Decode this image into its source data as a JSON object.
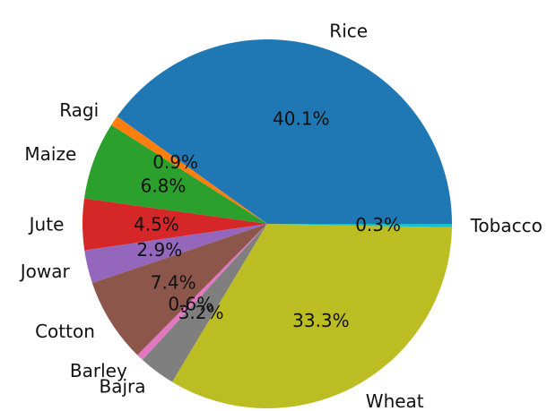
{
  "chart_data": {
    "type": "pie",
    "title": "",
    "start_angle_deg": 0,
    "direction": "counterclockwise",
    "legend": "none",
    "slices": [
      {
        "label": "Rice",
        "value": 40.1,
        "pct_label": "40.1%",
        "color": "#1f77b4"
      },
      {
        "label": "Ragi",
        "value": 0.9,
        "pct_label": "0.9%",
        "color": "#ff7f0e"
      },
      {
        "label": "Maize",
        "value": 6.8,
        "pct_label": "6.8%",
        "color": "#2ca02c"
      },
      {
        "label": "Jute",
        "value": 4.5,
        "pct_label": "4.5%",
        "color": "#d62728"
      },
      {
        "label": "Jowar",
        "value": 2.9,
        "pct_label": "2.9%",
        "color": "#9467bd"
      },
      {
        "label": "Cotton",
        "value": 7.4,
        "pct_label": "7.4%",
        "color": "#8c564b"
      },
      {
        "label": "Barley",
        "value": 0.6,
        "pct_label": "0.6%",
        "color": "#e377c2"
      },
      {
        "label": "Bajra",
        "value": 3.2,
        "pct_label": "3.2%",
        "color": "#7f7f7f"
      },
      {
        "label": "Wheat",
        "value": 33.3,
        "pct_label": "33.3%",
        "color": "#bcbd22"
      },
      {
        "label": "Tobacco",
        "value": 0.3,
        "pct_label": "0.3%",
        "color": "#17becf"
      }
    ]
  }
}
